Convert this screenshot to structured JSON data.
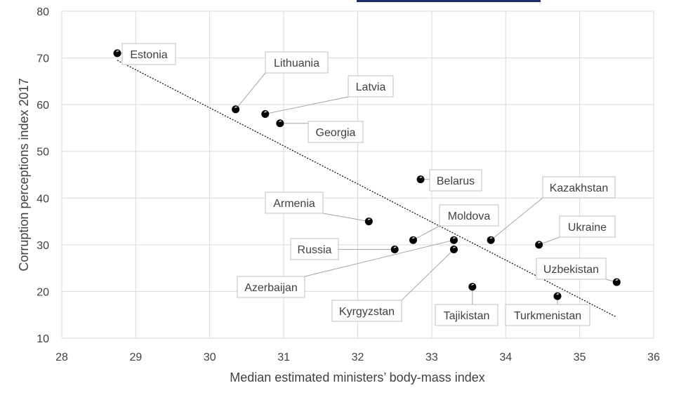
{
  "chart_data": {
    "type": "scatter",
    "title": "",
    "xlabel": "Median estimated ministers’ body-mass index",
    "ylabel": "Corruption perceptions index 2017",
    "xlim": [
      28,
      36
    ],
    "ylim": [
      10,
      80
    ],
    "xticks": [
      28,
      29,
      30,
      31,
      32,
      33,
      34,
      35,
      36
    ],
    "yticks": [
      10,
      20,
      30,
      40,
      50,
      60,
      70,
      80
    ],
    "grid": "vertical and horizontal major gridlines",
    "legend": "none",
    "trendline": {
      "style": "dotted linear",
      "x": [
        28.75,
        35.5
      ],
      "y": [
        69.5,
        14.5
      ]
    },
    "points": [
      {
        "name": "Estonia",
        "x": 28.75,
        "y": 71
      },
      {
        "name": "Lithuania",
        "x": 30.35,
        "y": 59
      },
      {
        "name": "Latvia",
        "x": 30.75,
        "y": 58
      },
      {
        "name": "Georgia",
        "x": 30.95,
        "y": 56
      },
      {
        "name": "Belarus",
        "x": 32.85,
        "y": 44
      },
      {
        "name": "Armenia",
        "x": 32.15,
        "y": 35
      },
      {
        "name": "Moldova",
        "x": 32.75,
        "y": 31
      },
      {
        "name": "Russia",
        "x": 32.5,
        "y": 29
      },
      {
        "name": "Azerbaijan",
        "x": 33.3,
        "y": 31
      },
      {
        "name": "Kyrgyzstan",
        "x": 33.3,
        "y": 29
      },
      {
        "name": "Kazakhstan",
        "x": 33.8,
        "y": 31
      },
      {
        "name": "Ukraine",
        "x": 34.45,
        "y": 30
      },
      {
        "name": "Uzbekistan",
        "x": 35.5,
        "y": 22
      },
      {
        "name": "Tajikistan",
        "x": 33.55,
        "y": 21
      },
      {
        "name": "Turkmenistan",
        "x": 34.7,
        "y": 19
      }
    ]
  },
  "colors": {
    "grid": "#d9d9d9",
    "text": "#404040",
    "marker": "#000000",
    "callout_border": "#bfbfbf",
    "leader": "#a6a6a6",
    "trendline": "#000000",
    "top_bar": "#1f2a6b"
  }
}
